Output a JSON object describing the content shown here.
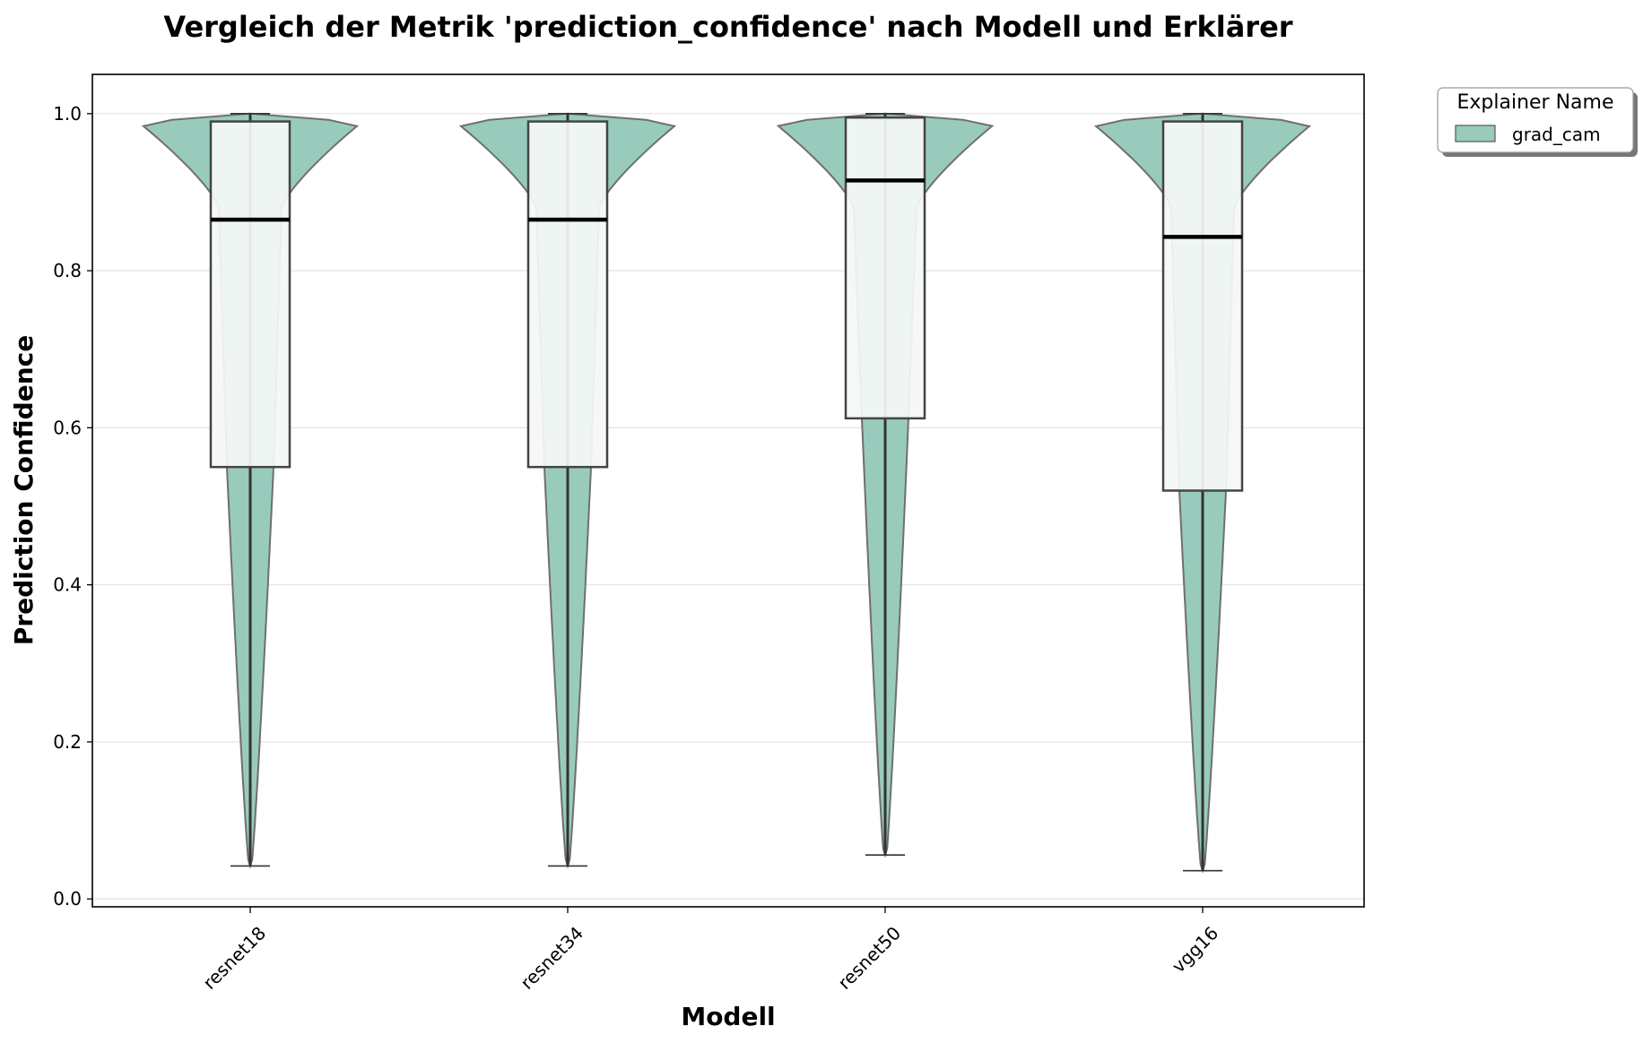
{
  "chart_data": {
    "type": "violin",
    "title": "Vergleich der Metrik 'prediction_confidence' nach Modell und Erklärer",
    "xlabel": "Modell",
    "ylabel": "Prediction Confidence",
    "ylim": [
      -0.01,
      1.05
    ],
    "yticks": [
      "0.0",
      "0.2",
      "0.4",
      "0.6",
      "0.8",
      "1.0"
    ],
    "categories": [
      "resnet18",
      "resnet34",
      "resnet50",
      "vgg16"
    ],
    "grid": "horizontal",
    "legend": {
      "title": "Explainer Name",
      "placement": "outside-top-right"
    },
    "series": [
      {
        "name": "grad_cam",
        "color": "#99cbbc",
        "boxes": [
          {
            "min": 0.042,
            "q1": 0.55,
            "median": 0.865,
            "q3": 0.99,
            "max": 1.0
          },
          {
            "min": 0.042,
            "q1": 0.55,
            "median": 0.865,
            "q3": 0.99,
            "max": 1.0
          },
          {
            "min": 0.056,
            "q1": 0.612,
            "median": 0.915,
            "q3": 0.995,
            "max": 1.0
          },
          {
            "min": 0.036,
            "q1": 0.52,
            "median": 0.843,
            "q3": 0.99,
            "max": 1.0
          }
        ]
      }
    ]
  }
}
